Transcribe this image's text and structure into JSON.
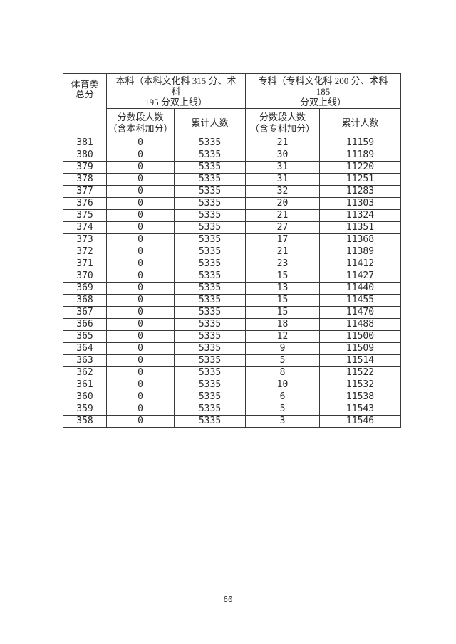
{
  "table": {
    "corner_header": "体育类\n总分",
    "group_headers": [
      "本科（本科文化科 315 分、术\n科\n195 分双上线）",
      "专科（专科文化科 200 分、术科\n185\n分双上线）"
    ],
    "sub_headers": [
      "分数段人数\n（含本科加分）",
      "累计人数",
      "分数段人数\n（含专科加分）",
      "累计人数"
    ],
    "rows": [
      [
        "381",
        "0",
        "5335",
        "21",
        "11159"
      ],
      [
        "380",
        "0",
        "5335",
        "30",
        "11189"
      ],
      [
        "379",
        "0",
        "5335",
        "31",
        "11220"
      ],
      [
        "378",
        "0",
        "5335",
        "31",
        "11251"
      ],
      [
        "377",
        "0",
        "5335",
        "32",
        "11283"
      ],
      [
        "376",
        "0",
        "5335",
        "20",
        "11303"
      ],
      [
        "375",
        "0",
        "5335",
        "21",
        "11324"
      ],
      [
        "374",
        "0",
        "5335",
        "27",
        "11351"
      ],
      [
        "373",
        "0",
        "5335",
        "17",
        "11368"
      ],
      [
        "372",
        "0",
        "5335",
        "21",
        "11389"
      ],
      [
        "371",
        "0",
        "5335",
        "23",
        "11412"
      ],
      [
        "370",
        "0",
        "5335",
        "15",
        "11427"
      ],
      [
        "369",
        "0",
        "5335",
        "13",
        "11440"
      ],
      [
        "368",
        "0",
        "5335",
        "15",
        "11455"
      ],
      [
        "367",
        "0",
        "5335",
        "15",
        "11470"
      ],
      [
        "366",
        "0",
        "5335",
        "18",
        "11488"
      ],
      [
        "365",
        "0",
        "5335",
        "12",
        "11500"
      ],
      [
        "364",
        "0",
        "5335",
        "9",
        "11509"
      ],
      [
        "363",
        "0",
        "5335",
        "5",
        "11514"
      ],
      [
        "362",
        "0",
        "5335",
        "8",
        "11522"
      ],
      [
        "361",
        "0",
        "5335",
        "10",
        "11532"
      ],
      [
        "360",
        "0",
        "5335",
        "6",
        "11538"
      ],
      [
        "359",
        "0",
        "5335",
        "5",
        "11543"
      ],
      [
        "358",
        "0",
        "5335",
        "3",
        "11546"
      ]
    ]
  },
  "footer": {
    "page_number": "60"
  }
}
